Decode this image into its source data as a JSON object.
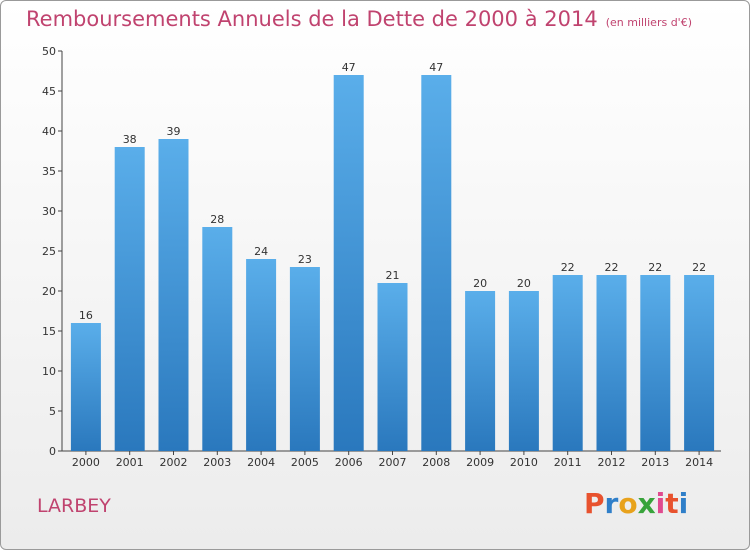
{
  "chart_data": {
    "type": "bar",
    "title": "Remboursements Annuels de la Dette de 2000 à 2014",
    "unit": "(en milliers d'€)",
    "categories": [
      "2000",
      "2001",
      "2002",
      "2003",
      "2004",
      "2005",
      "2006",
      "2007",
      "2008",
      "2009",
      "2010",
      "2011",
      "2012",
      "2013",
      "2014"
    ],
    "values": [
      16,
      38,
      39,
      28,
      24,
      23,
      47,
      21,
      47,
      20,
      20,
      22,
      22,
      22,
      22
    ],
    "ylim": [
      0,
      50
    ],
    "yticks": [
      0,
      5,
      10,
      15,
      20,
      25,
      30,
      35,
      40,
      45,
      50
    ],
    "xlabel": "",
    "ylabel": "",
    "grid": false,
    "bar_color": "#4a9be0",
    "bar_color_dark": "#2f7fc4"
  },
  "footer": {
    "place": "LARBEY",
    "brand": "Proxiti"
  },
  "colors": {
    "title": "#c0436f",
    "axis": "#333333"
  }
}
